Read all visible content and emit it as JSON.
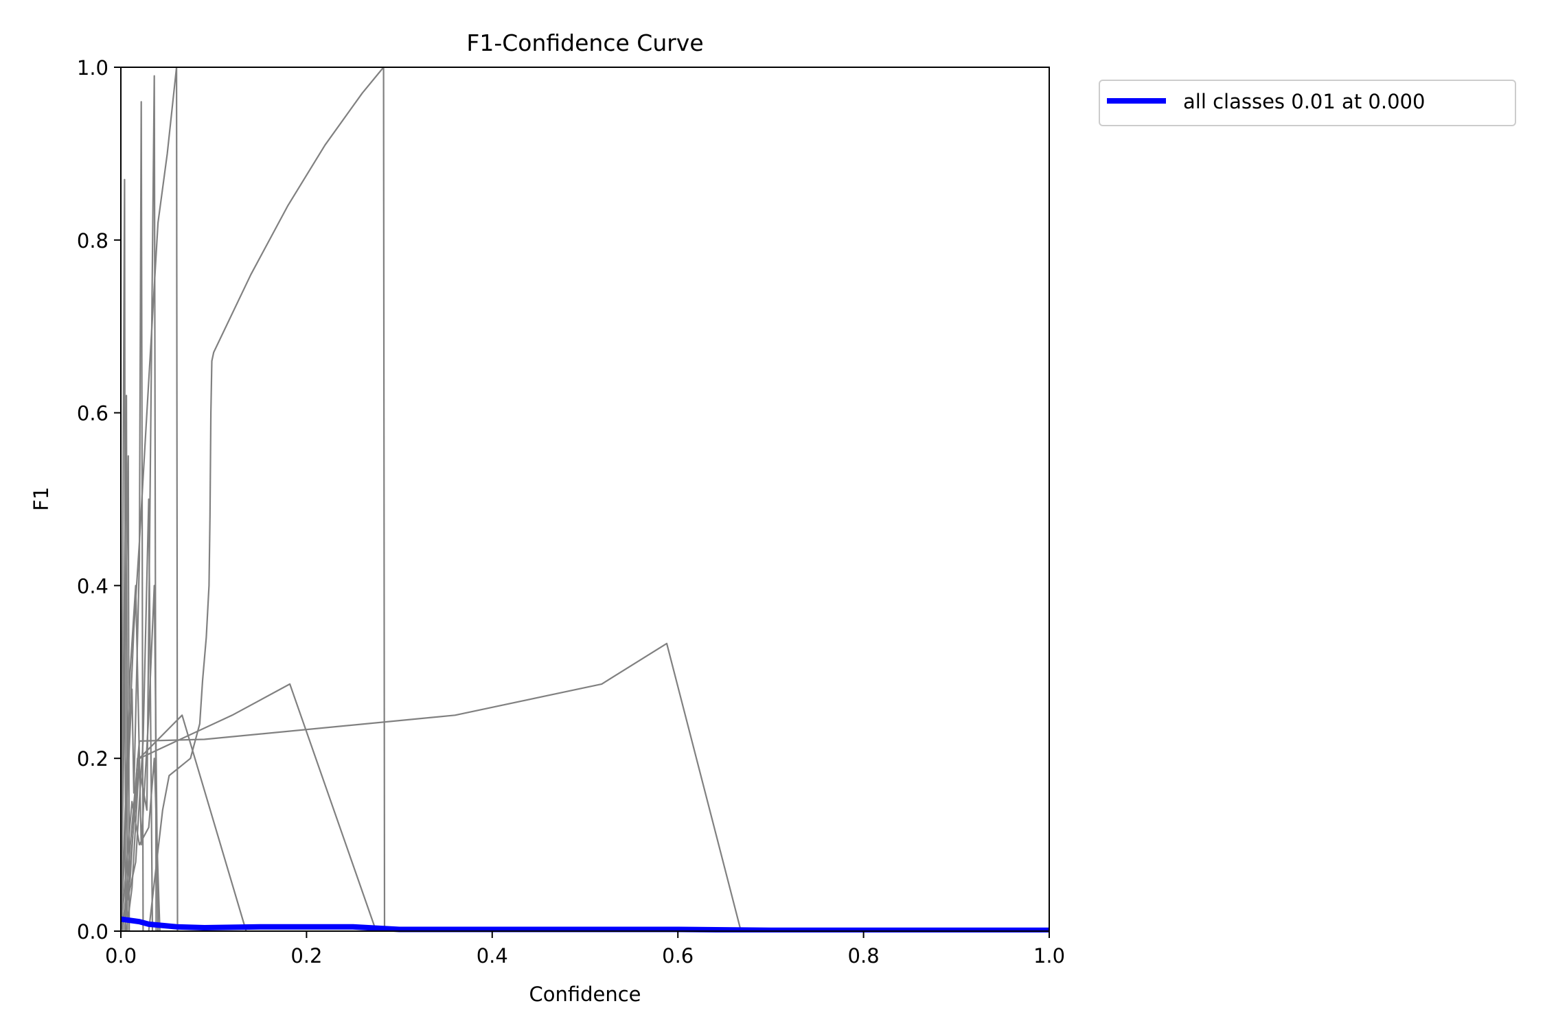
{
  "chart_data": {
    "type": "line",
    "title": "F1-Confidence Curve",
    "xlabel": "Confidence",
    "ylabel": "F1",
    "xlim": [
      0,
      1
    ],
    "ylim": [
      0,
      1
    ],
    "x_ticks": [
      "0.0",
      "0.2",
      "0.4",
      "0.6",
      "0.8",
      "1.0"
    ],
    "y_ticks": [
      "0.0",
      "0.2",
      "0.4",
      "0.6",
      "0.8",
      "1.0"
    ],
    "grid": false,
    "legend_position": "outside-top-right",
    "colors": {
      "class_curves": "#808080",
      "all_classes": "#0000ff"
    },
    "series": [
      {
        "values": [
          [
            0.0,
            0.0
          ],
          [
            0.004,
            0.87
          ],
          [
            0.005,
            0.0
          ]
        ]
      },
      {
        "values": [
          [
            0.0,
            0.0
          ],
          [
            0.006,
            0.62
          ],
          [
            0.007,
            0.0
          ]
        ]
      },
      {
        "values": [
          [
            0.0,
            0.0
          ],
          [
            0.008,
            0.55
          ],
          [
            0.009,
            0.0
          ]
        ]
      },
      {
        "values": [
          [
            0.0,
            0.0
          ],
          [
            0.012,
            0.28
          ],
          [
            0.014,
            0.16
          ],
          [
            0.02,
            0.43
          ],
          [
            0.022,
            0.96
          ],
          [
            0.024,
            0.0
          ]
        ]
      },
      {
        "values": [
          [
            0.0,
            0.0
          ],
          [
            0.01,
            0.06
          ],
          [
            0.018,
            0.2
          ],
          [
            0.028,
            0.14
          ],
          [
            0.036,
            0.99
          ],
          [
            0.038,
            0.0
          ]
        ]
      },
      {
        "values": [
          [
            0.0,
            0.0
          ],
          [
            0.01,
            0.3
          ],
          [
            0.016,
            0.4
          ],
          [
            0.022,
            0.1
          ],
          [
            0.03,
            0.25
          ],
          [
            0.036,
            0.4
          ],
          [
            0.04,
            0.0
          ]
        ]
      },
      {
        "values": [
          [
            0.0,
            0.0
          ],
          [
            0.014,
            0.35
          ],
          [
            0.02,
            0.45
          ],
          [
            0.028,
            0.6
          ],
          [
            0.04,
            0.82
          ],
          [
            0.05,
            0.9
          ],
          [
            0.06,
            1.0
          ],
          [
            0.061,
            0.0
          ]
        ]
      },
      {
        "values": [
          [
            0.0,
            0.0
          ],
          [
            0.012,
            0.15
          ],
          [
            0.02,
            0.1
          ],
          [
            0.03,
            0.12
          ],
          [
            0.036,
            0.2
          ],
          [
            0.042,
            0.0
          ]
        ]
      },
      {
        "values": [
          [
            0.0,
            0.0
          ],
          [
            0.016,
            0.08
          ],
          [
            0.024,
            0.22
          ],
          [
            0.03,
            0.5
          ],
          [
            0.034,
            0.0
          ]
        ]
      },
      {
        "values": [
          [
            0.006,
            0.0
          ],
          [
            0.012,
            0.05
          ],
          [
            0.02,
            0.2
          ],
          [
            0.066,
            0.25
          ],
          [
            0.135,
            0.0
          ]
        ]
      },
      {
        "values": [
          [
            0.004,
            0.0
          ],
          [
            0.02,
            0.2
          ],
          [
            0.12,
            0.25
          ],
          [
            0.182,
            0.286
          ],
          [
            0.275,
            0.0
          ]
        ]
      },
      {
        "values": [
          [
            0.002,
            0.0
          ],
          [
            0.02,
            0.22
          ],
          [
            0.09,
            0.222
          ],
          [
            0.36,
            0.25
          ],
          [
            0.518,
            0.286
          ],
          [
            0.588,
            0.333
          ],
          [
            0.668,
            0.0
          ]
        ]
      },
      {
        "values": [
          [
            0.03,
            0.0
          ],
          [
            0.045,
            0.14
          ],
          [
            0.052,
            0.18
          ],
          [
            0.075,
            0.2
          ],
          [
            0.085,
            0.24
          ],
          [
            0.088,
            0.29
          ],
          [
            0.092,
            0.34
          ],
          [
            0.095,
            0.4
          ],
          [
            0.096,
            0.48
          ],
          [
            0.097,
            0.6
          ],
          [
            0.098,
            0.66
          ],
          [
            0.1,
            0.67
          ],
          [
            0.14,
            0.76
          ],
          [
            0.18,
            0.84
          ],
          [
            0.22,
            0.91
          ],
          [
            0.26,
            0.97
          ],
          [
            0.283,
            1.0
          ],
          [
            0.284,
            0.0
          ]
        ]
      },
      {
        "name": "all classes 0.01 at 0.000",
        "values": [
          [
            0.0,
            0.014
          ],
          [
            0.02,
            0.011
          ],
          [
            0.03,
            0.008
          ],
          [
            0.06,
            0.005
          ],
          [
            0.09,
            0.004
          ],
          [
            0.15,
            0.005
          ],
          [
            0.25,
            0.005
          ],
          [
            0.3,
            0.002
          ],
          [
            0.5,
            0.002
          ],
          [
            0.6,
            0.002
          ],
          [
            0.7,
            0.001
          ],
          [
            1.0,
            0.001
          ]
        ]
      }
    ]
  }
}
